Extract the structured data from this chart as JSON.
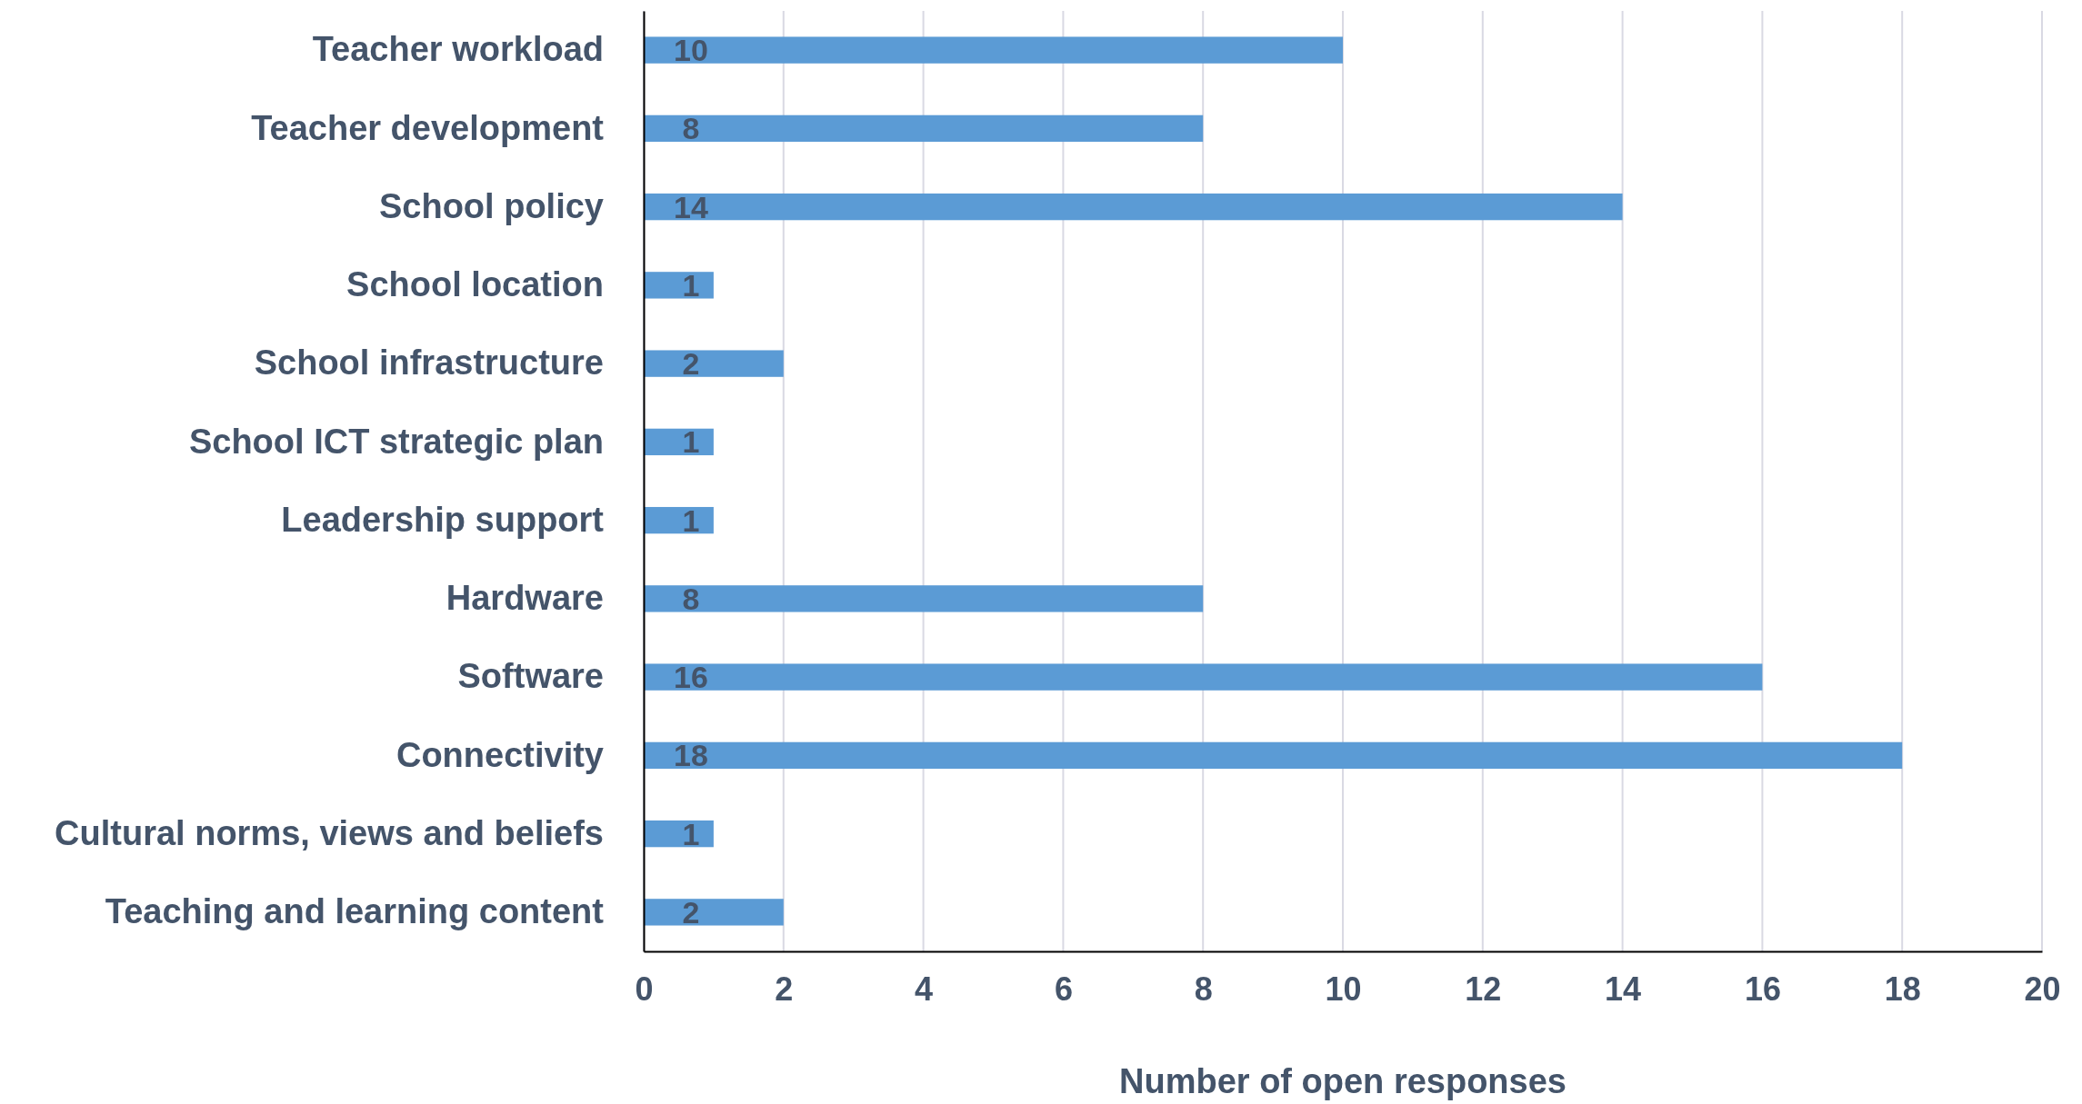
{
  "chart_data": {
    "type": "bar",
    "orientation": "horizontal",
    "xlabel": "Number of open responses",
    "categories": [
      "Teacher workload",
      "Teacher development",
      "School policy",
      "School location",
      "School infrastructure",
      "School ICT strategic plan",
      "Leadership support",
      "Hardware",
      "Software",
      "Connectivity",
      "Cultural norms, views and beliefs",
      "Teaching and learning content"
    ],
    "values": [
      10,
      8,
      14,
      1,
      2,
      1,
      1,
      8,
      16,
      18,
      1,
      2
    ],
    "color": "#5b9bd5",
    "xlim": [
      0,
      20
    ],
    "xticks": [
      0,
      2,
      4,
      6,
      8,
      10,
      12,
      14,
      16,
      18,
      20
    ],
    "grid": "x",
    "data_labels": true
  }
}
